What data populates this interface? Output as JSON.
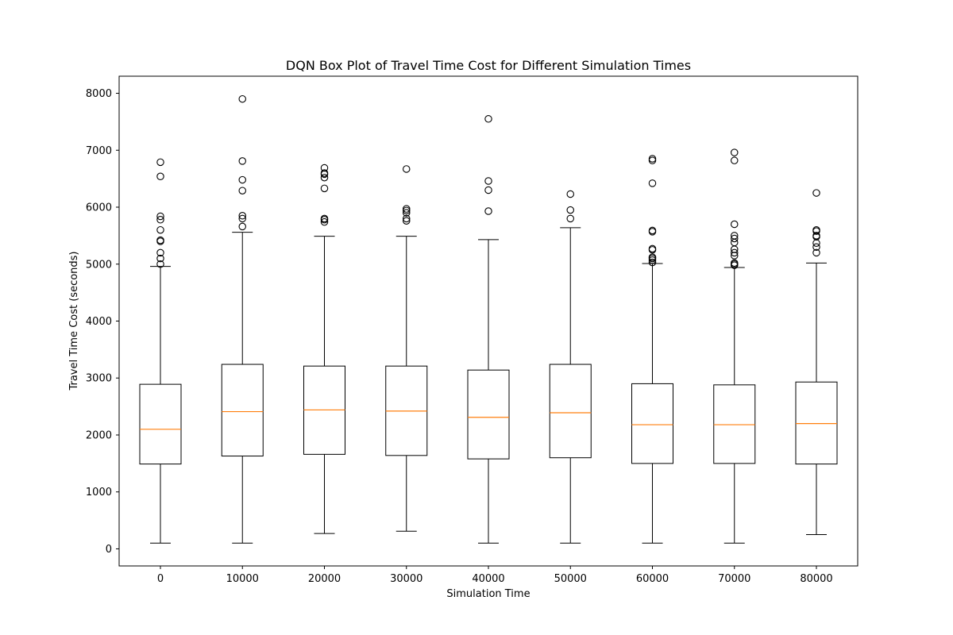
{
  "chart_data": {
    "type": "box",
    "title": "DQN Box Plot of Travel Time Cost for Different Simulation Times",
    "xlabel": "Simulation Time",
    "ylabel": "Travel Time Cost (seconds)",
    "ylim": [
      -300,
      8300
    ],
    "yticks": [
      0,
      1000,
      2000,
      3000,
      4000,
      5000,
      6000,
      7000,
      8000
    ],
    "grid": false,
    "colors": {
      "box": "#000000",
      "median": "#ff7f0e",
      "flier": "#000000"
    },
    "categories": [
      "0",
      "10000",
      "20000",
      "30000",
      "40000",
      "50000",
      "60000",
      "70000",
      "80000"
    ],
    "boxes": [
      {
        "label": "0",
        "whislo": 100,
        "q1": 1490,
        "median": 2100,
        "q3": 2890,
        "whishi": 4960,
        "fliers": [
          5000,
          5100,
          5200,
          5400,
          5420,
          5600,
          5780,
          5840,
          6540,
          6790
        ]
      },
      {
        "label": "10000",
        "whislo": 100,
        "q1": 1630,
        "median": 2410,
        "q3": 3240,
        "whishi": 5560,
        "fliers": [
          5660,
          5800,
          5850,
          6290,
          6480,
          6810,
          7900
        ]
      },
      {
        "label": "20000",
        "whislo": 270,
        "q1": 1660,
        "median": 2440,
        "q3": 3210,
        "whishi": 5490,
        "fliers": [
          5740,
          5780,
          5800,
          6330,
          6520,
          6580,
          6600,
          6690
        ]
      },
      {
        "label": "30000",
        "whislo": 310,
        "q1": 1640,
        "median": 2420,
        "q3": 3210,
        "whishi": 5490,
        "fliers": [
          5760,
          5800,
          5900,
          5940,
          5970,
          6670
        ]
      },
      {
        "label": "40000",
        "whislo": 100,
        "q1": 1580,
        "median": 2310,
        "q3": 3140,
        "whishi": 5430,
        "fliers": [
          5930,
          6300,
          6460,
          7550
        ]
      },
      {
        "label": "50000",
        "whislo": 100,
        "q1": 1600,
        "median": 2390,
        "q3": 3240,
        "whishi": 5640,
        "fliers": [
          5800,
          5950,
          6230
        ]
      },
      {
        "label": "60000",
        "whislo": 100,
        "q1": 1500,
        "median": 2180,
        "q3": 2900,
        "whishi": 5010,
        "fliers": [
          5030,
          5070,
          5100,
          5120,
          5250,
          5270,
          5570,
          5590,
          6420,
          6820,
          6850
        ]
      },
      {
        "label": "70000",
        "whislo": 100,
        "q1": 1500,
        "median": 2180,
        "q3": 2880,
        "whishi": 4940,
        "fliers": [
          4980,
          5000,
          5020,
          5150,
          5200,
          5260,
          5380,
          5450,
          5500,
          5700,
          6820,
          6960
        ]
      },
      {
        "label": "80000",
        "whislo": 250,
        "q1": 1490,
        "median": 2200,
        "q3": 2930,
        "whishi": 5020,
        "fliers": [
          5200,
          5300,
          5370,
          5480,
          5500,
          5580,
          5600,
          6250
        ]
      }
    ]
  }
}
